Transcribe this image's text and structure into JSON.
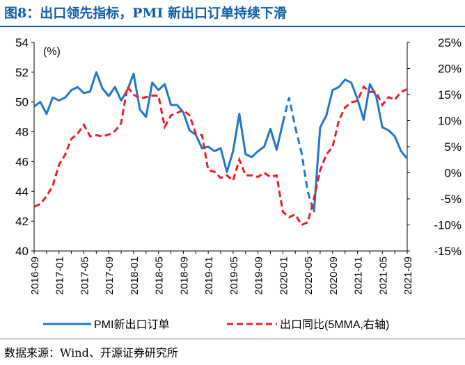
{
  "figure": {
    "title": "图8：出口领先指标，PMI 新出口订单持续下滑",
    "source": "数据来源：Wind、开源证券研究所"
  },
  "chart_data": {
    "type": "line",
    "left_unit_label": "(%)",
    "ylim_left": [
      40,
      54
    ],
    "yticks_left": [
      "40",
      "42",
      "44",
      "46",
      "48",
      "50",
      "52",
      "54"
    ],
    "ylim_right": [
      -15,
      25
    ],
    "yticks_right": [
      "-15%",
      "-10%",
      "-5%",
      "0%",
      "5%",
      "10%",
      "15%",
      "20%",
      "25%"
    ],
    "x_tick_labels": [
      "2016-09",
      "2017-01",
      "2017-05",
      "2017-09",
      "2018-01",
      "2018-05",
      "2018-09",
      "2019-01",
      "2019-05",
      "2019-09",
      "2020-01",
      "2020-05",
      "2020-09",
      "2021-01",
      "2021-05",
      "2021-09"
    ],
    "series": [
      {
        "name": "PMI新出口订单",
        "axis": "left",
        "color": "#1f77c9",
        "style": "solid",
        "dashed_range": [
          "2020-01",
          "2020-06"
        ],
        "x": [
          "2016-09",
          "2016-10",
          "2016-11",
          "2016-12",
          "2017-01",
          "2017-02",
          "2017-03",
          "2017-04",
          "2017-05",
          "2017-06",
          "2017-07",
          "2017-08",
          "2017-09",
          "2017-10",
          "2017-11",
          "2017-12",
          "2018-01",
          "2018-02",
          "2018-03",
          "2018-04",
          "2018-05",
          "2018-06",
          "2018-07",
          "2018-08",
          "2018-09",
          "2018-10",
          "2018-11",
          "2018-12",
          "2019-01",
          "2019-02",
          "2019-03",
          "2019-04",
          "2019-05",
          "2019-06",
          "2019-07",
          "2019-08",
          "2019-09",
          "2019-10",
          "2019-11",
          "2019-12",
          "2020-01",
          "2020-02",
          "2020-03",
          "2020-04",
          "2020-05",
          "2020-06",
          "2020-07",
          "2020-08",
          "2020-09",
          "2020-10",
          "2020-11",
          "2020-12",
          "2021-01",
          "2021-02",
          "2021-03",
          "2021-04",
          "2021-05",
          "2021-06",
          "2021-07",
          "2021-08",
          "2021-09"
        ],
        "values": [
          49.7,
          50.0,
          49.2,
          50.3,
          50.1,
          50.3,
          50.8,
          51.0,
          50.6,
          50.7,
          52.0,
          50.9,
          50.4,
          51.0,
          50.1,
          50.8,
          51.9,
          49.5,
          49.0,
          51.3,
          50.8,
          51.2,
          49.8,
          49.8,
          49.3,
          48.1,
          47.8,
          46.9,
          47.0,
          46.7,
          46.9,
          45.3,
          46.7,
          49.2,
          46.5,
          46.3,
          46.7,
          47.0,
          48.2,
          46.8,
          48.6,
          50.3,
          48.3,
          46.6,
          44.0,
          42.6,
          48.3,
          49.1,
          50.8,
          51.0,
          51.5,
          51.3,
          50.2,
          48.8,
          51.2,
          50.4,
          48.3,
          48.1,
          47.7,
          46.7,
          46.2
        ]
      },
      {
        "name": "出口同比(5MMA,右轴)",
        "axis": "right",
        "color": "#ee1d23",
        "style": "dashed",
        "x": [
          "2016-09",
          "2016-10",
          "2016-11",
          "2016-12",
          "2017-01",
          "2017-02",
          "2017-03",
          "2017-04",
          "2017-05",
          "2017-06",
          "2017-07",
          "2017-08",
          "2017-09",
          "2017-10",
          "2017-11",
          "2017-12",
          "2018-01",
          "2018-02",
          "2018-03",
          "2018-04",
          "2018-05",
          "2018-06",
          "2018-07",
          "2018-08",
          "2018-09",
          "2018-10",
          "2018-11",
          "2018-12",
          "2019-01",
          "2019-02",
          "2019-03",
          "2019-04",
          "2019-05",
          "2019-06",
          "2019-07",
          "2019-08",
          "2019-09",
          "2019-10",
          "2019-11",
          "2019-12",
          "2020-01",
          "2020-02",
          "2020-03",
          "2020-04",
          "2020-05",
          "2020-06",
          "2020-07",
          "2020-08",
          "2020-09",
          "2020-10",
          "2020-11",
          "2020-12",
          "2021-01",
          "2021-02",
          "2021-03",
          "2021-04",
          "2021-05",
          "2021-06",
          "2021-07",
          "2021-08",
          "2021-09"
        ],
        "values": [
          -6.5,
          -6.0,
          -4.5,
          -2.5,
          1.5,
          3.5,
          6.5,
          7.5,
          9.2,
          7.0,
          7.2,
          7.0,
          7.3,
          8.0,
          9.5,
          16.5,
          15.0,
          14.2,
          14.5,
          14.8,
          14.8,
          8.8,
          11.0,
          11.5,
          12.0,
          11.0,
          7.5,
          7.2,
          0.5,
          0.2,
          -1.0,
          -0.5,
          -1.5,
          2.5,
          -0.5,
          -0.5,
          -0.8,
          0.0,
          -0.8,
          -0.5,
          -7.5,
          -8.5,
          -8.0,
          -10.0,
          -9.5,
          -5.0,
          0.5,
          3.5,
          5.0,
          10.0,
          12.5,
          13.5,
          13.8,
          16.5,
          15.5,
          15.5,
          13.0,
          14.5,
          14.0,
          15.5,
          16.0
        ]
      }
    ]
  }
}
